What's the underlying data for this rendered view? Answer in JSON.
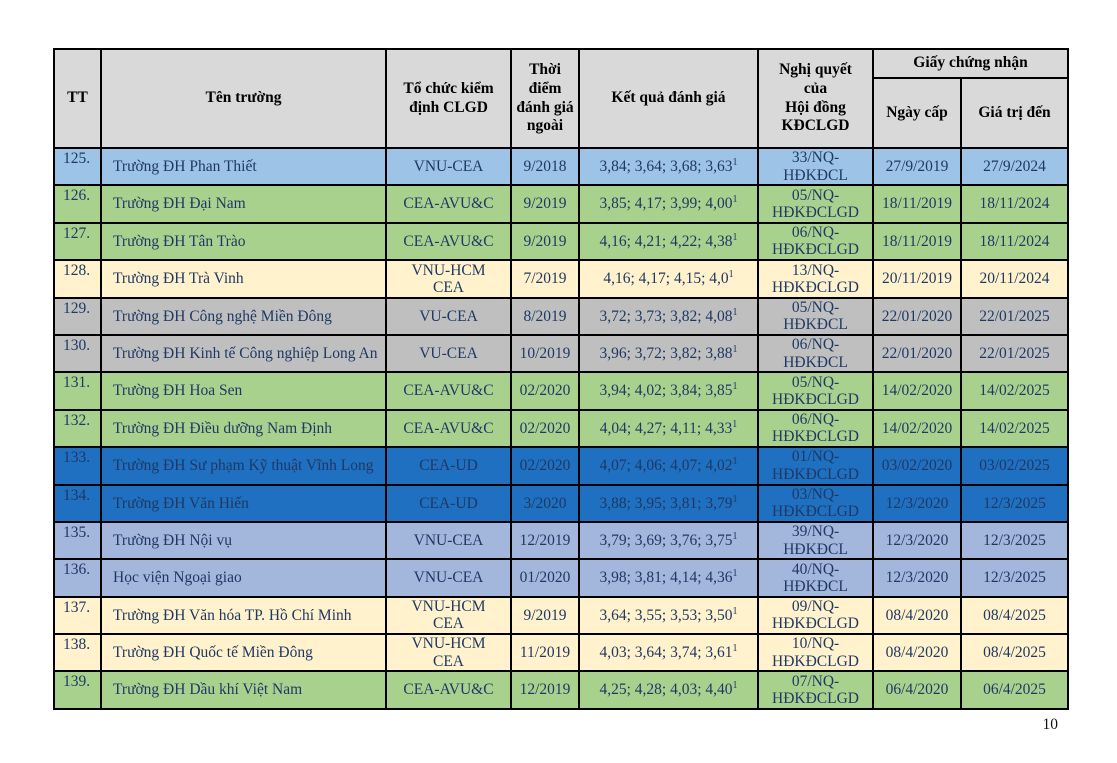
{
  "page": {
    "number": "10"
  },
  "colors": {
    "blue": "#9DC3E6",
    "green": "#A9D18E",
    "cream": "#FFF2CC",
    "gray": "#BFBFBF",
    "dark_blue": "#1F70C1",
    "periwinkle": "#A3B6DC",
    "header_gray": "#D9D9D9",
    "text_navy": "#1F3864"
  },
  "table": {
    "headers": {
      "tt": "TT",
      "name": "Tên trường",
      "org": "Tổ chức kiểm định CLGD",
      "time": "Thời điểm đánh giá ngoài",
      "result": "Kết quả đánh giá",
      "resolution": "Nghị quyết\ncủa\nHội đồng\nKĐCLGD",
      "certificate": "Giấy chứng nhận",
      "issued": "Ngày cấp",
      "valid": "Giá trị đến"
    },
    "rows": [
      {
        "tt": "125.",
        "name": "Trường ĐH Phan Thiết",
        "org": "VNU-CEA",
        "time": "9/2018",
        "result": "3,84; 3,64; 3,68; 3,63",
        "result_sup": "1",
        "resolution": "33/NQ-\nHĐKĐCL",
        "issued": "27/9/2019",
        "valid": "27/9/2024",
        "color": "blue"
      },
      {
        "tt": "126.",
        "name": "Trường ĐH Đại Nam",
        "org": "CEA-AVU&C",
        "time": "9/2019",
        "result": "3,85; 4,17; 3,99; 4,00",
        "result_sup": "1",
        "resolution": "05/NQ-\nHĐKĐCLGD",
        "issued": "18/11/2019",
        "valid": "18/11/2024",
        "color": "green"
      },
      {
        "tt": "127.",
        "name": "Trường ĐH Tân Trào",
        "org": "CEA-AVU&C",
        "time": "9/2019",
        "result": "4,16; 4,21; 4,22; 4,38",
        "result_sup": "1",
        "resolution": "06/NQ-\nHĐKĐCLGD",
        "issued": "18/11/2019",
        "valid": "18/11/2024",
        "color": "green"
      },
      {
        "tt": "128.",
        "name": "Trường ĐH Trà Vinh",
        "org": "VNU-HCM\nCEA",
        "time": "7/2019",
        "result": "4,16; 4,17; 4,15; 4,0",
        "result_sup": "1",
        "resolution": "13/NQ-\nHĐKĐCLGD",
        "issued": "20/11/2019",
        "valid": "20/11/2024",
        "color": "cream"
      },
      {
        "tt": "129.",
        "name": "Trường ĐH Công nghệ Miền Đông",
        "org": "VU-CEA",
        "time": "8/2019",
        "result": "3,72; 3,73; 3,82; 4,08",
        "result_sup": "1",
        "resolution": "05/NQ-\nHĐKĐCL",
        "issued": "22/01/2020",
        "valid": "22/01/2025",
        "color": "gray"
      },
      {
        "tt": "130.",
        "name": "Trường ĐH Kinh tế Công nghiệp Long An",
        "org": "VU-CEA",
        "time": "10/2019",
        "result": "3,96; 3,72; 3,82; 3,88",
        "result_sup": "1",
        "resolution": "06/NQ-\nHĐKĐCL",
        "issued": "22/01/2020",
        "valid": "22/01/2025",
        "color": "gray"
      },
      {
        "tt": "131.",
        "name": "Trường ĐH Hoa Sen",
        "org": "CEA-AVU&C",
        "time": "02/2020",
        "result": "3,94; 4,02; 3,84; 3,85",
        "result_sup": "1",
        "resolution": "05/NQ-\nHĐKĐCLGD",
        "issued": "14/02/2020",
        "valid": "14/02/2025",
        "color": "green"
      },
      {
        "tt": "132.",
        "name": "Trường ĐH Điều dưỡng Nam Định",
        "org": "CEA-AVU&C",
        "time": "02/2020",
        "result": "4,04; 4,27; 4,11; 4,33",
        "result_sup": "1",
        "resolution": "06/NQ-\nHĐKĐCLGD",
        "issued": "14/02/2020",
        "valid": "14/02/2025",
        "color": "green"
      },
      {
        "tt": "133.",
        "name": "Trường ĐH Sư phạm Kỹ thuật Vĩnh Long",
        "org": "CEA-UD",
        "time": "02/2020",
        "result": "4,07; 4,06; 4,07; 4,02",
        "result_sup": "1",
        "resolution": "01/NQ-\nHĐKĐCLGD",
        "issued": "03/02/2020",
        "valid": "03/02/2025",
        "color": "dark_blue"
      },
      {
        "tt": "134.",
        "name": "Trường ĐH Văn Hiến",
        "org": "CEA-UD",
        "time": "3/2020",
        "result": "3,88; 3,95; 3,81; 3,79",
        "result_sup": "1",
        "resolution": "03/NQ-\nHĐKĐCLGD",
        "issued": "12/3/2020",
        "valid": "12/3/2025",
        "color": "dark_blue"
      },
      {
        "tt": "135.",
        "name": "Trường ĐH Nội vụ",
        "org": "VNU-CEA",
        "time": "12/2019",
        "result": "3,79; 3,69; 3,76; 3,75",
        "result_sup": "1",
        "resolution": "39/NQ-\nHĐKĐCL",
        "issued": "12/3/2020",
        "valid": "12/3/2025",
        "color": "periwinkle"
      },
      {
        "tt": "136.",
        "name": "Học viện Ngoại giao",
        "org": "VNU-CEA",
        "time": "01/2020",
        "result": "3,98; 3,81; 4,14; 4,36",
        "result_sup": "1",
        "resolution": "40/NQ-\nHĐKĐCL",
        "issued": "12/3/2020",
        "valid": "12/3/2025",
        "color": "periwinkle"
      },
      {
        "tt": "137.",
        "name": "Trường ĐH Văn hóa TP.  Hồ Chí Minh",
        "org": "VNU-HCM\nCEA",
        "time": "9/2019",
        "result": "3,64; 3,55; 3,53; 3,50",
        "result_sup": "1",
        "resolution": "09/NQ-\nHĐKĐCLGD",
        "issued": "08/4/2020",
        "valid": "08/4/2025",
        "color": "cream"
      },
      {
        "tt": "138.",
        "name": "Trường ĐH Quốc tế Miền Đông",
        "org": "VNU-HCM\nCEA",
        "time": "11/2019",
        "result": "4,03; 3,64; 3,74; 3,61",
        "result_sup": "1",
        "resolution": "10/NQ-\nHĐKĐCLGD",
        "issued": "08/4/2020",
        "valid": "08/4/2025",
        "color": "cream"
      },
      {
        "tt": "139.",
        "name": "Trường ĐH Dầu khí Việt Nam",
        "org": "CEA-AVU&C",
        "time": "12/2019",
        "result": "4,25; 4,28; 4,03; 4,40",
        "result_sup": "1",
        "resolution": "07/NQ-\nHĐKĐCLGD",
        "issued": "06/4/2020",
        "valid": "06/4/2025",
        "color": "green"
      }
    ]
  }
}
